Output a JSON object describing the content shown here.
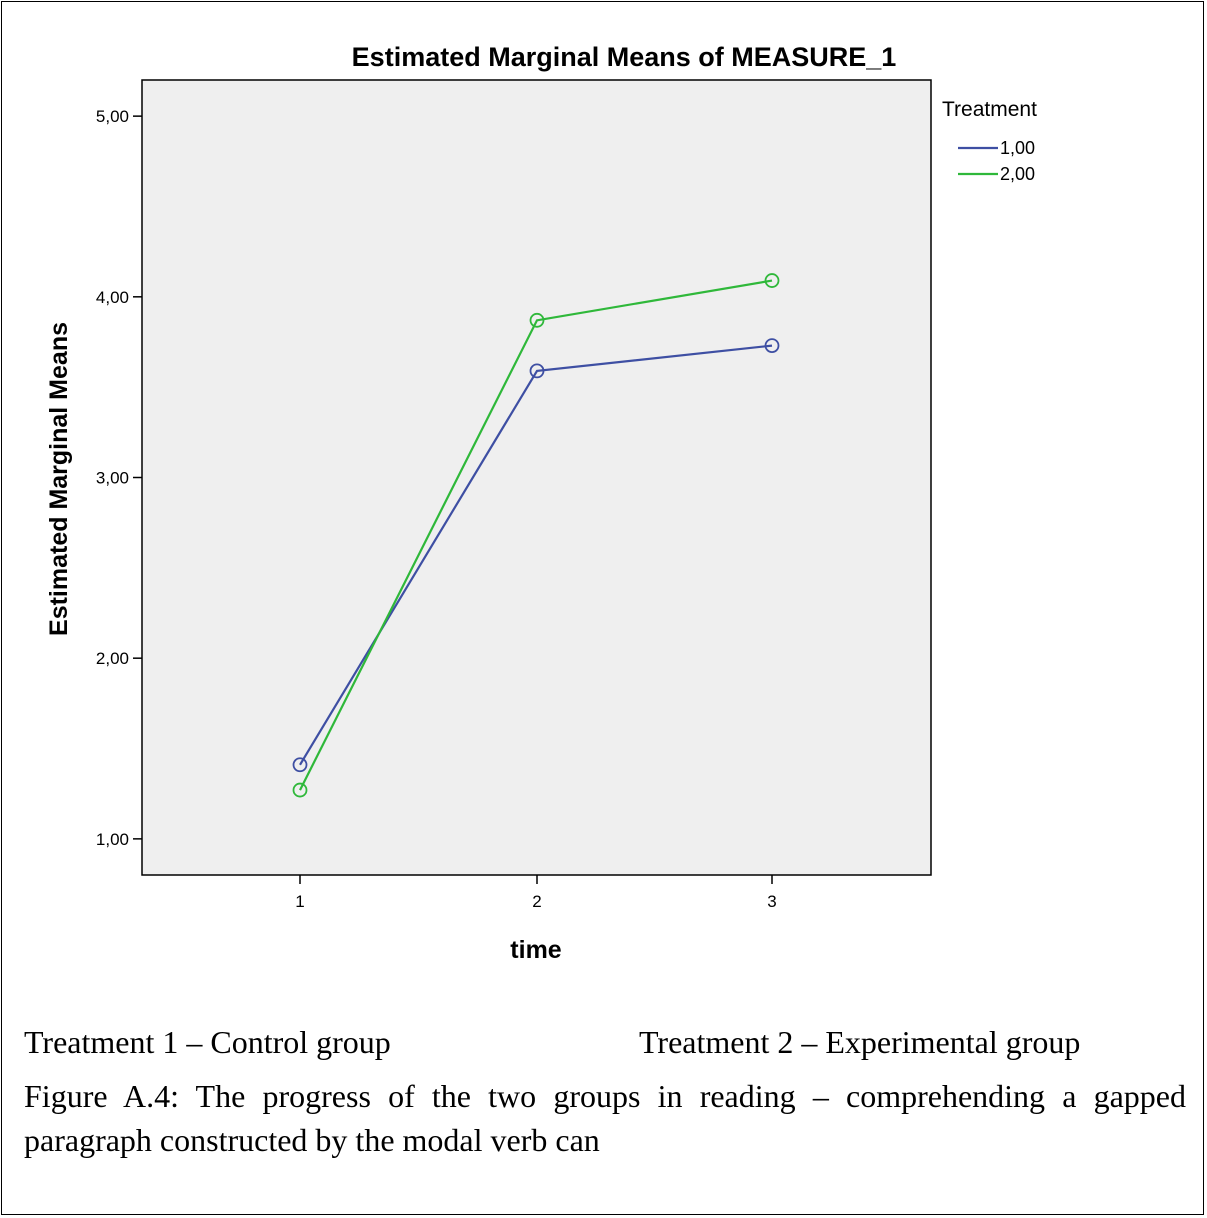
{
  "chart_data": {
    "type": "line",
    "title": "Estimated Marginal Means of MEASURE_1",
    "xlabel": "time",
    "ylabel": "Estimated Marginal Means",
    "categories": [
      "1",
      "2",
      "3"
    ],
    "yticks": [
      "1,00",
      "2,00",
      "3,00",
      "4,00",
      "5,00"
    ],
    "ylim": [
      0.8,
      5.2
    ],
    "grid": false,
    "legend_placement": "top-right, outside plot",
    "legend_title": "Treatment",
    "series": [
      {
        "name": "1,00",
        "color": "#3e4fa3",
        "values": [
          1.41,
          3.59,
          3.73
        ]
      },
      {
        "name": "2,00",
        "color": "#2fb83a",
        "values": [
          1.27,
          3.87,
          4.09
        ]
      }
    ],
    "plot_background": "#efefef"
  },
  "captions": {
    "treatment1": "Treatment 1 – Control group",
    "treatment2": "Treatment 2 – Experimental group",
    "figure": "Figure A.4: The progress of the two groups in reading – comprehending a gapped paragraph constructed by the modal verb can"
  }
}
